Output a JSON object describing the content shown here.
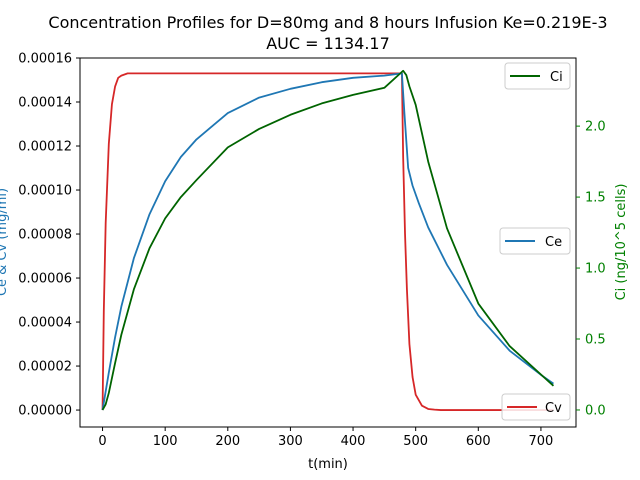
{
  "chart_data": {
    "type": "line",
    "title": "Concentration Profiles for D=80mg and 8 hours Infusion Ke=0.219E-3",
    "subtitle": "AUC = 1134.17",
    "xlabel": "t(min)",
    "ylabel_left": "Ce & Cv (mg/ml)",
    "ylabel_right": "Ci (ng/10^5 cells)",
    "xlim": [
      -36,
      756
    ],
    "ylim_left": [
      -7.7e-06,
      0.00016
    ],
    "ylim_right": [
      -0.12,
      2.48
    ],
    "x_ticks": [
      "0",
      "100",
      "200",
      "300",
      "400",
      "500",
      "600",
      "700"
    ],
    "y_left_ticks": [
      "0.00000",
      "0.00002",
      "0.00004",
      "0.00006",
      "0.00008",
      "0.00010",
      "0.00012",
      "0.00014",
      "0.00016"
    ],
    "y_right_ticks": [
      "0.0",
      "0.5",
      "1.0",
      "1.5",
      "2.0"
    ],
    "colors": {
      "Ce": "#1f77b4",
      "Cv": "#d62728",
      "Ci": "#006400",
      "axis_left": "#1f77b4",
      "axis_right": "#008000"
    },
    "legends": {
      "Ci": "top-right",
      "Ce": "center-right",
      "Cv": "bottom-right"
    },
    "series": [
      {
        "name": "Cv",
        "axis": "left",
        "x": [
          0,
          2,
          5,
          10,
          15,
          20,
          25,
          30,
          40,
          50,
          100,
          200,
          300,
          400,
          478,
          480,
          483,
          486,
          490,
          495,
          500,
          510,
          520,
          530,
          540,
          560,
          600,
          650,
          700,
          720
        ],
        "values": [
          0,
          4.5e-05,
          8.5e-05,
          0.000121,
          0.000139,
          0.000147,
          0.000151,
          0.000152,
          0.000153,
          0.000153,
          0.000153,
          0.000153,
          0.000153,
          0.000153,
          0.000153,
          0.000115,
          8e-05,
          5.5e-05,
          3e-05,
          1.5e-05,
          7e-06,
          2e-06,
          5e-07,
          2e-07,
          0,
          0,
          0,
          0,
          0,
          0
        ]
      },
      {
        "name": "Ce",
        "axis": "left",
        "x": [
          0,
          10,
          20,
          30,
          50,
          75,
          100,
          125,
          150,
          200,
          250,
          300,
          350,
          400,
          450,
          478,
          482,
          488,
          495,
          505,
          520,
          550,
          600,
          650,
          700,
          720
        ],
        "values": [
          0,
          1.7e-05,
          3.3e-05,
          4.7e-05,
          6.9e-05,
          8.9e-05,
          0.000104,
          0.000115,
          0.000123,
          0.000135,
          0.000142,
          0.000146,
          0.000149,
          0.000151,
          0.000152,
          0.000153,
          0.000135,
          0.00011,
          0.000102,
          9.4e-05,
          8.3e-05,
          6.6e-05,
          4.3e-05,
          2.7e-05,
          1.6e-05,
          1.2e-05
        ]
      },
      {
        "name": "Ci",
        "axis": "right",
        "x": [
          0,
          5,
          10,
          20,
          30,
          50,
          75,
          100,
          125,
          150,
          200,
          250,
          300,
          350,
          400,
          450,
          480,
          485,
          490,
          500,
          520,
          550,
          600,
          650,
          700,
          720
        ],
        "values": [
          0,
          0.04,
          0.12,
          0.33,
          0.53,
          0.85,
          1.14,
          1.35,
          1.5,
          1.62,
          1.85,
          1.98,
          2.08,
          2.16,
          2.22,
          2.27,
          2.39,
          2.36,
          2.28,
          2.15,
          1.75,
          1.28,
          0.75,
          0.45,
          0.25,
          0.17
        ]
      }
    ]
  }
}
